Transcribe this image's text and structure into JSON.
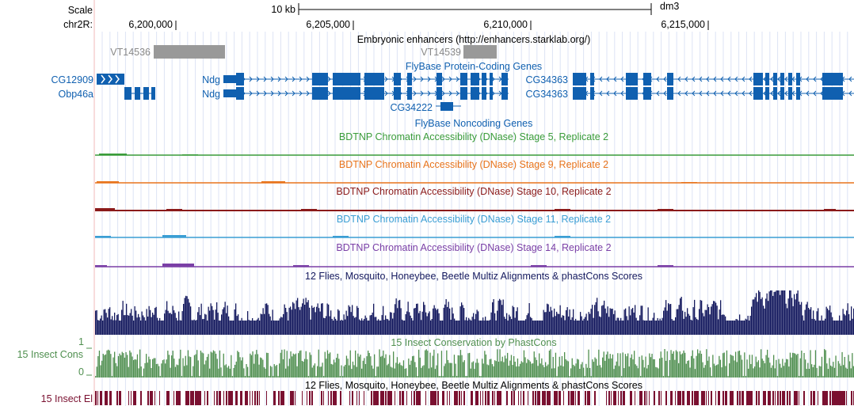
{
  "ruler": {
    "scale_label": "Scale",
    "chrom_label": "chr2R:",
    "scale_bar": "10 kb",
    "assembly": "dm3",
    "ticks": [
      "6,200,000",
      "6,205,000",
      "6,210,000",
      "6,215,000"
    ]
  },
  "enhancers": {
    "title": "Embryonic enhancers (http://enhancers.starklab.org/)",
    "items": [
      "VT14536",
      "VT14539"
    ]
  },
  "genes": {
    "title": "FlyBase Protein-Coding Genes",
    "labels": [
      "CG12909",
      "Obp46a",
      "Ndg",
      "Ndg",
      "CG34363",
      "CG34363"
    ],
    "noncoding_title": "FlyBase Noncoding Genes",
    "noncoding_labels": [
      "CG34222"
    ]
  },
  "dnase_tracks": [
    {
      "title": "BDTNP Chromatin Accessibility (DNase) Stage 5, Replicate 2",
      "color": "#3a9c3a"
    },
    {
      "title": "BDTNP Chromatin Accessibility (DNase) Stage 9, Replicate 2",
      "color": "#e8741c"
    },
    {
      "title": "BDTNP Chromatin Accessibility (DNase) Stage 10, Replicate 2",
      "color": "#8b1a1a"
    },
    {
      "title": "BDTNP Chromatin Accessibility (DNase) Stage 11, Replicate 2",
      "color": "#3a9ed4"
    },
    {
      "title": "BDTNP Chromatin Accessibility (DNase) Stage 14, Replicate 2",
      "color": "#7a3fa6"
    }
  ],
  "multiz": {
    "title": "12 Flies, Mosquito, Honeybee, Beetle Multiz Alignments & phastCons Scores",
    "color": "#14195e"
  },
  "cons": {
    "side_label": "15 Insect Cons",
    "title": "15 Insect Conservation by PhastCons",
    "axis_max": "1",
    "axis_min": "0",
    "color": "#4f8f4f"
  },
  "elements": {
    "side_label": "15 Insect El",
    "title": "12 Flies, Mosquito, Honeybee, Beetle Multiz Alignments & phastCons Scores",
    "color": "#7a1030"
  },
  "colors": {
    "gene": "#1060b0",
    "enhancer_box": "#999999",
    "enhancer_text": "#888888"
  }
}
